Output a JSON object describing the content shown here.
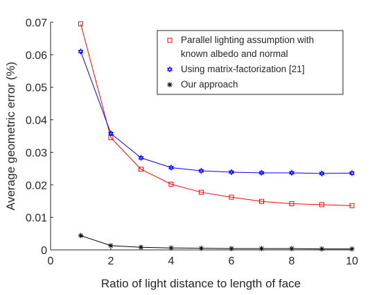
{
  "chart_data": {
    "type": "line",
    "xlabel": "Ratio of light distance to length of face",
    "ylabel": "Average geometric error (%)",
    "xlim": [
      0,
      10
    ],
    "ylim": [
      0,
      0.07
    ],
    "xticks": [
      0,
      2,
      4,
      6,
      8,
      10
    ],
    "xtick_labels": [
      "0",
      "2",
      "4",
      "6",
      "8",
      "10"
    ],
    "yticks": [
      0,
      0.01,
      0.02,
      0.03,
      0.04,
      0.05,
      0.06,
      0.07
    ],
    "ytick_labels": [
      "0",
      "0.01",
      "0.02",
      "0.03",
      "0.04",
      "0.05",
      "0.06",
      "0.07"
    ],
    "grid": false,
    "legend_position": "top-right",
    "x": [
      1,
      2,
      3,
      4,
      5,
      6,
      7,
      8,
      9,
      10
    ],
    "series": [
      {
        "name_lines": [
          "Parallel lighting assumption with",
          "known albedo and normal"
        ],
        "color": "#ff0000",
        "marker": "square",
        "values": [
          0.0695,
          0.0345,
          0.0248,
          0.0202,
          0.0177,
          0.0162,
          0.0149,
          0.0142,
          0.0139,
          0.0136
        ]
      },
      {
        "name_lines": [
          "Using matrix-factorization [21]"
        ],
        "color": "#0000ff",
        "marker": "hexagram",
        "values": [
          0.061,
          0.0358,
          0.0283,
          0.0253,
          0.0243,
          0.0239,
          0.0237,
          0.0237,
          0.0235,
          0.0236
        ]
      },
      {
        "name_lines": [
          "Our approach"
        ],
        "color": "#000000",
        "marker": "asterisk",
        "values": [
          0.0044,
          0.0013,
          0.0008,
          0.0006,
          0.0005,
          0.0004,
          0.0004,
          0.0004,
          0.0003,
          0.0003
        ]
      }
    ]
  }
}
